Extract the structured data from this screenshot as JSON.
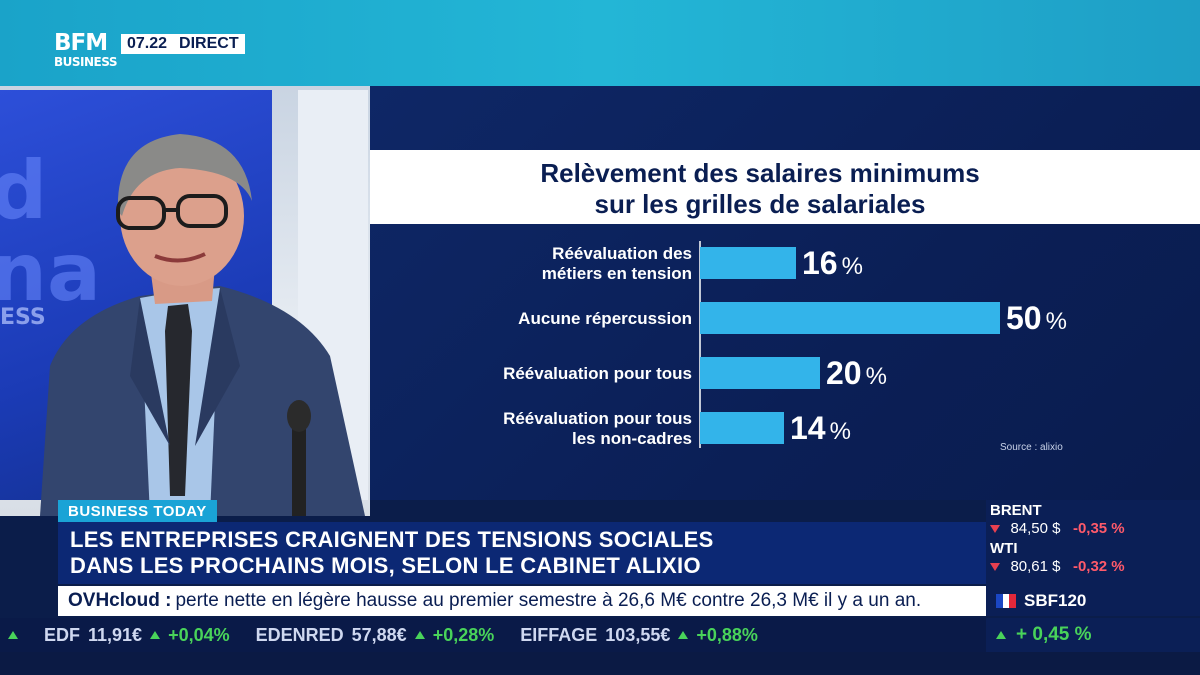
{
  "header": {
    "logo_line1": "BFM",
    "logo_line2": "BUSINESS",
    "time": "07.22",
    "live_label": "DIRECT"
  },
  "studio": {
    "screen_text": "d\nna",
    "screen_sub": "ESS"
  },
  "chart_data": {
    "type": "bar",
    "orientation": "horizontal",
    "title": "Relèvement des salaires minimums\nsur les grilles de salariales",
    "title_lines": [
      "Relèvement des salaires minimums",
      "sur les grilles de salariales"
    ],
    "categories": [
      [
        "Réévaluation des",
        "métiers en tension"
      ],
      [
        "Aucune répercussion"
      ],
      [
        "Réévaluation pour tous"
      ],
      [
        "Réévaluation pour tous",
        "les non-cadres"
      ]
    ],
    "values": [
      16,
      50,
      20,
      14
    ],
    "value_suffix": "%",
    "source": "Source : alixio",
    "bar_color": "#33b4ea"
  },
  "lower_third": {
    "tag": "BUSINESS TODAY",
    "headline_lines": [
      "LES ENTREPRISES CRAIGNENT DES TENSIONS SOCIALES",
      "DANS LES PROCHAINS MOIS, SELON LE CABINET ALIXIO"
    ],
    "ticker_brand": "OVHcloud :",
    "ticker_text": "perte nette en légère hausse au premier semestre à 26,6 M€ contre 26,3 M€ il y a un an."
  },
  "markets": [
    {
      "name": "BRENT",
      "value": "84,50 $",
      "change": "-0,35 %"
    },
    {
      "name": "WTI",
      "value": "80,61 $",
      "change": "-0,32 %"
    }
  ],
  "index": {
    "name": "SBF120",
    "change": "+ 0,45 %"
  },
  "stock_ticker": [
    {
      "name": "EDF",
      "value": "11,91€",
      "change": "+0,04%"
    },
    {
      "name": "EDENRED",
      "value": "57,88€",
      "change": "+0,28%"
    },
    {
      "name": "EIFFAGE",
      "value": "103,55€",
      "change": "+0,88%"
    }
  ]
}
